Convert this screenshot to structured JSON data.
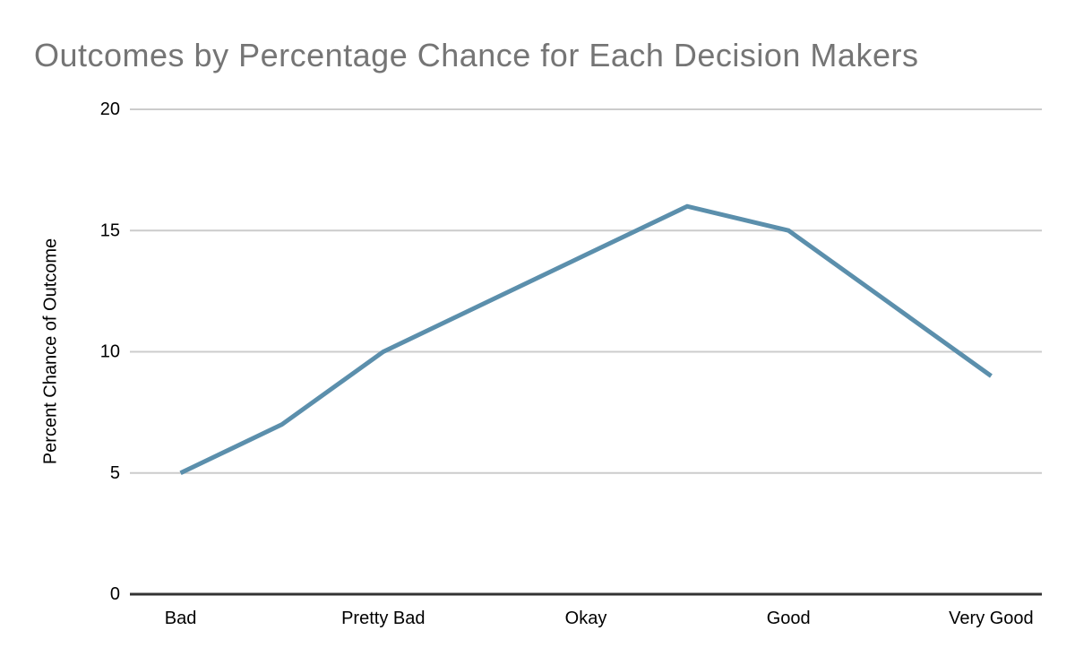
{
  "chart_data": {
    "type": "line",
    "title": "Outcomes by Percentage Chance for Each Decision Makers",
    "xlabel": "",
    "ylabel": "Percent Chance of Outcome",
    "categories": [
      "Bad",
      "",
      "Pretty Bad",
      "",
      "Okay",
      "",
      "Good",
      "",
      "Very Good"
    ],
    "values": [
      5,
      7,
      10,
      12,
      14,
      16,
      15,
      12,
      9
    ],
    "ylim": [
      0,
      20
    ],
    "yticks": [
      0,
      5,
      10,
      15,
      20
    ],
    "grid": true,
    "legend": "none",
    "colors": {
      "line": "#5b8fac",
      "gridline": "#cccccc",
      "axis_baseline": "#333333",
      "title_text": "#757575",
      "tick_text": "#000000",
      "background": "#ffffff"
    }
  }
}
